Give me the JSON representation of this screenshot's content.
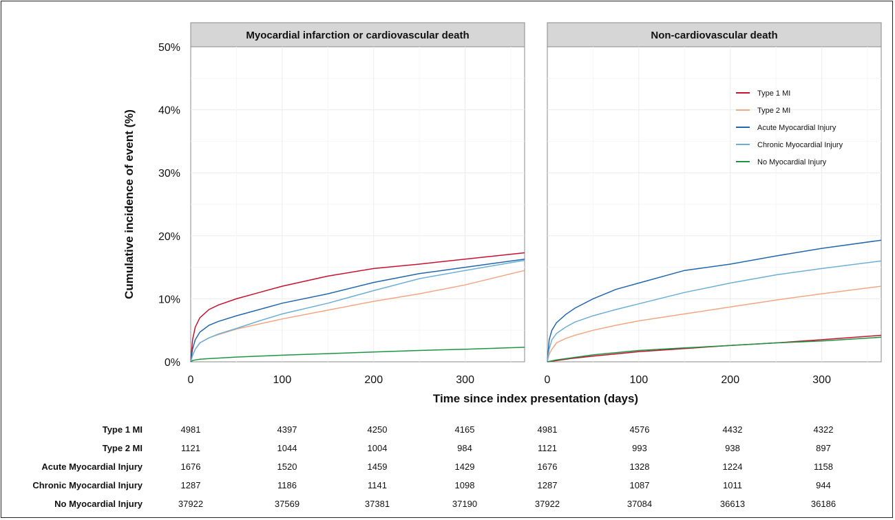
{
  "chart_data": {
    "type": "line",
    "ylabel": "Cumulative incidence of event (%)",
    "xlabel": "Time since index presentation (days)",
    "yticks": [
      "0%",
      "10%",
      "20%",
      "30%",
      "40%",
      "50%"
    ],
    "ylim": [
      0,
      50
    ],
    "xlim": [
      0,
      365
    ],
    "xticks": [
      "0",
      "100",
      "200",
      "300"
    ],
    "legend": {
      "placement": "top-right of right panel",
      "entries": [
        "Type 1 MI",
        "Type 2 MI",
        "Acute Myocardial Injury",
        "Chronic Myocardial Injury",
        "No Myocardial Injury"
      ]
    },
    "colors": {
      "Type 1 MI": "#c8102e",
      "Type 2 MI": "#f4a582",
      "Acute Myocardial Injury": "#2166ac",
      "Chronic Myocardial Injury": "#6baed6",
      "No Myocardial Injury": "#1a9641"
    },
    "panels": [
      {
        "title": "Myocardial infarction or cardiovascular death",
        "series": [
          {
            "name": "Type 1 MI",
            "x": [
              0,
              2,
              5,
              10,
              20,
              30,
              50,
              75,
              100,
              150,
              200,
              250,
              300,
              365
            ],
            "y": [
              0,
              3.5,
              5.5,
              7,
              8.3,
              9,
              10,
              11,
              12,
              13.6,
              14.8,
              15.5,
              16.3,
              17.3
            ]
          },
          {
            "name": "Type 2 MI",
            "x": [
              0,
              2,
              5,
              10,
              20,
              30,
              50,
              75,
              100,
              150,
              200,
              250,
              300,
              365
            ],
            "y": [
              0,
              1,
              2,
              3,
              3.8,
              4.3,
              5.2,
              6.0,
              6.8,
              8.2,
              9.6,
              10.8,
              12.2,
              14.5
            ]
          },
          {
            "name": "Acute Myocardial Injury",
            "x": [
              0,
              2,
              5,
              10,
              20,
              30,
              50,
              75,
              100,
              150,
              200,
              250,
              300,
              365
            ],
            "y": [
              0,
              2,
              3.5,
              4.7,
              5.8,
              6.4,
              7.3,
              8.3,
              9.3,
              10.8,
              12.6,
              14.0,
              15.0,
              16.3
            ]
          },
          {
            "name": "Chronic Myocardial Injury",
            "x": [
              0,
              2,
              5,
              10,
              20,
              30,
              50,
              75,
              100,
              150,
              200,
              250,
              300,
              365
            ],
            "y": [
              0,
              1,
              2,
              3,
              3.8,
              4.4,
              5.3,
              6.5,
              7.6,
              9.3,
              11.3,
              13.2,
              14.5,
              16.1
            ]
          },
          {
            "name": "No Myocardial Injury",
            "x": [
              0,
              2,
              5,
              10,
              20,
              50,
              100,
              150,
              200,
              250,
              300,
              365
            ],
            "y": [
              0,
              0.2,
              0.3,
              0.4,
              0.5,
              0.75,
              1.05,
              1.3,
              1.55,
              1.8,
              2.0,
              2.3
            ]
          }
        ]
      },
      {
        "title": "Non-cardiovascular death",
        "series": [
          {
            "name": "Type 1 MI",
            "x": [
              0,
              10,
              25,
              50,
              100,
              150,
              200,
              250,
              300,
              365
            ],
            "y": [
              0,
              0.2,
              0.5,
              0.9,
              1.6,
              2.1,
              2.6,
              3.0,
              3.5,
              4.2
            ]
          },
          {
            "name": "Type 2 MI",
            "x": [
              0,
              2,
              5,
              10,
              20,
              30,
              50,
              75,
              100,
              150,
              200,
              250,
              300,
              365
            ],
            "y": [
              0,
              1.2,
              2.0,
              3.0,
              3.7,
              4.2,
              5.0,
              5.8,
              6.5,
              7.6,
              8.7,
              9.8,
              10.8,
              12.0
            ]
          },
          {
            "name": "Acute Myocardial Injury",
            "x": [
              0,
              2,
              5,
              10,
              20,
              30,
              50,
              75,
              100,
              150,
              200,
              250,
              300,
              365
            ],
            "y": [
              0,
              3.5,
              5.0,
              6.2,
              7.5,
              8.5,
              10.0,
              11.5,
              12.5,
              14.5,
              15.5,
              16.8,
              18.0,
              19.3
            ]
          },
          {
            "name": "Chronic Myocardial Injury",
            "x": [
              0,
              2,
              5,
              10,
              20,
              30,
              50,
              75,
              100,
              150,
              200,
              250,
              300,
              365
            ],
            "y": [
              0,
              2.0,
              3.5,
              4.5,
              5.5,
              6.3,
              7.3,
              8.3,
              9.2,
              11.0,
              12.5,
              13.8,
              14.8,
              16.0
            ]
          },
          {
            "name": "No Myocardial Injury",
            "x": [
              0,
              10,
              25,
              50,
              100,
              150,
              200,
              250,
              300,
              365
            ],
            "y": [
              0,
              0.3,
              0.6,
              1.1,
              1.8,
              2.2,
              2.6,
              3.0,
              3.3,
              3.9
            ]
          }
        ]
      }
    ],
    "risk_table": {
      "rows": [
        {
          "label": "Type 1 MI",
          "values": [
            "4981",
            "4397",
            "4250",
            "4165",
            "4981",
            "4576",
            "4432",
            "4322"
          ]
        },
        {
          "label": "Type 2 MI",
          "values": [
            "1121",
            "1044",
            "1004",
            "984",
            "1121",
            "993",
            "938",
            "897"
          ]
        },
        {
          "label": "Acute Myocardial Injury",
          "values": [
            "1676",
            "1520",
            "1459",
            "1429",
            "1676",
            "1328",
            "1224",
            "1158"
          ]
        },
        {
          "label": "Chronic Myocardial Injury",
          "values": [
            "1287",
            "1186",
            "1141",
            "1098",
            "1287",
            "1087",
            "1011",
            "944"
          ]
        },
        {
          "label": "No Myocardial Injury",
          "values": [
            "37922",
            "37569",
            "37381",
            "37190",
            "37922",
            "37084",
            "36613",
            "36186"
          ]
        }
      ]
    }
  }
}
